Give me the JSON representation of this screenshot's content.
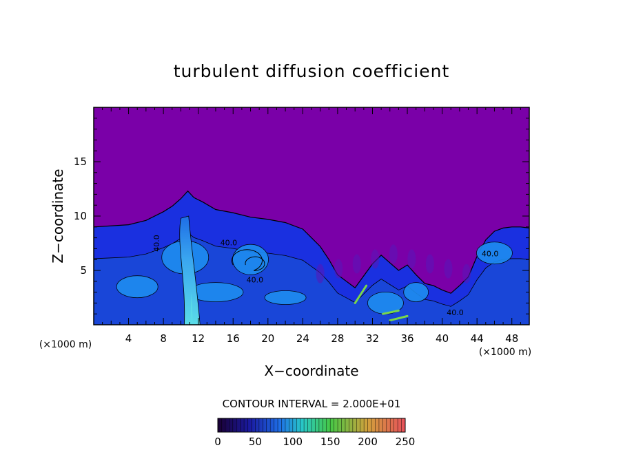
{
  "chart_data": {
    "type": "heatmap",
    "title": "turbulent diffusion coefficient",
    "xlabel": "X−coordinate",
    "ylabel": "Z−coordinate",
    "x_unit": "(×1000 m)",
    "y_unit": "(×1000 m)",
    "xlim": [
      0,
      50
    ],
    "ylim": [
      0,
      20
    ],
    "x_ticks": [
      4,
      8,
      12,
      16,
      20,
      24,
      28,
      32,
      36,
      40,
      44,
      48
    ],
    "y_ticks": [
      5,
      10,
      15
    ],
    "contour_interval": "CONTOUR INTERVAL = 2.000E+01",
    "contour_labels": [
      {
        "text": "40.0",
        "x": 7.5,
        "z": 7.5,
        "rotate": true
      },
      {
        "text": "40.0",
        "x": 15.5,
        "z": 7.3,
        "rotate": false
      },
      {
        "text": "40.0",
        "x": 18.5,
        "z": 3.9,
        "rotate": false
      },
      {
        "text": "40.0",
        "x": 41.5,
        "z": 0.9,
        "rotate": false
      },
      {
        "text": "40.0",
        "x": 45.5,
        "z": 6.3,
        "rotate": false
      }
    ],
    "boundary_top_z": [
      [
        0,
        9.0
      ],
      [
        2,
        9.1
      ],
      [
        4,
        9.2
      ],
      [
        6,
        9.6
      ],
      [
        8,
        10.4
      ],
      [
        9,
        10.9
      ],
      [
        10,
        11.6
      ],
      [
        10.8,
        12.3
      ],
      [
        11.5,
        11.7
      ],
      [
        12.5,
        11.3
      ],
      [
        14,
        10.6
      ],
      [
        16,
        10.3
      ],
      [
        18,
        9.9
      ],
      [
        20,
        9.7
      ],
      [
        22,
        9.4
      ],
      [
        24,
        8.8
      ],
      [
        25,
        8.0
      ],
      [
        26,
        7.2
      ],
      [
        27,
        6.0
      ],
      [
        28,
        4.6
      ],
      [
        29,
        4.0
      ],
      [
        30,
        3.4
      ],
      [
        31,
        4.5
      ],
      [
        32,
        5.6
      ],
      [
        33,
        6.4
      ],
      [
        34,
        5.7
      ],
      [
        35,
        5.0
      ],
      [
        36,
        5.5
      ],
      [
        37,
        4.6
      ],
      [
        38,
        3.8
      ],
      [
        39,
        3.6
      ],
      [
        40,
        3.2
      ],
      [
        41,
        2.9
      ],
      [
        42,
        3.6
      ],
      [
        43,
        4.4
      ],
      [
        44,
        6.3
      ],
      [
        45,
        7.8
      ],
      [
        46,
        8.6
      ],
      [
        47,
        8.9
      ],
      [
        48,
        9.0
      ],
      [
        49,
        9.0
      ],
      [
        50,
        8.9
      ]
    ],
    "colorbar": {
      "min": 0,
      "max": 250,
      "ticks": [
        0,
        50,
        100,
        150,
        200,
        250
      ],
      "colors": [
        "#1a0033",
        "#1a1aa0",
        "#1e6ee6",
        "#28c8c8",
        "#46c846",
        "#d2a03c",
        "#e6505a"
      ]
    },
    "colors": {
      "background_field": "#7a00a8",
      "low_field": "#1a30e0",
      "mid_field": "#1e8cf0",
      "high_field": "#5adce8",
      "peak_field": "#7ad84a"
    }
  }
}
